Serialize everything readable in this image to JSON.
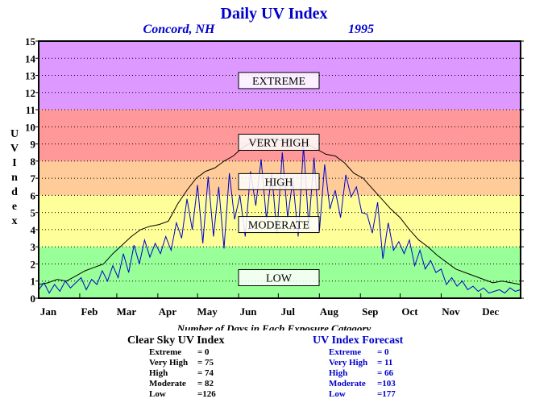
{
  "chart_data": {
    "type": "line",
    "title": "Daily UV Index",
    "subtitle_location": "Concord, NH",
    "subtitle_year": "1995",
    "ylabel": "UV Index",
    "xlabel": "",
    "ylim": [
      0,
      15
    ],
    "yticks": [
      "0",
      "1",
      "2",
      "3",
      "4",
      "5",
      "6",
      "7",
      "8",
      "9",
      "10",
      "11",
      "12",
      "13",
      "14",
      "15"
    ],
    "categories": [
      "Jan",
      "Feb",
      "Mar",
      "Apr",
      "May",
      "Jun",
      "Jul",
      "Aug",
      "Sep",
      "Oct",
      "Nov",
      "Dec"
    ],
    "bands": [
      {
        "label": "LOW",
        "from": 0,
        "to": 3,
        "color": "#99ff99",
        "label_y": 1.2
      },
      {
        "label": "MODERATE",
        "from": 3,
        "to": 6,
        "color": "#ffff99",
        "label_y": 4.3
      },
      {
        "label": "HIGH",
        "from": 6,
        "to": 8,
        "color": "#ffcc99",
        "label_y": 6.8
      },
      {
        "label": "VERY HIGH",
        "from": 8,
        "to": 11,
        "color": "#ff9999",
        "label_y": 9.1
      },
      {
        "label": "EXTREME",
        "from": 11,
        "to": 15,
        "color": "#dd99ff",
        "label_y": 12.7
      }
    ],
    "series": [
      {
        "role": "clear-sky",
        "color": "#000000",
        "x": [
          1,
          8,
          15,
          22,
          29,
          36,
          43,
          50,
          57,
          64,
          71,
          78,
          85,
          92,
          99,
          106,
          113,
          120,
          127,
          134,
          141,
          148,
          155,
          162,
          169,
          176,
          183,
          190,
          197,
          204,
          211,
          218,
          225,
          232,
          239,
          246,
          253,
          260,
          267,
          274,
          281,
          288,
          295,
          302,
          309,
          316,
          323,
          330,
          337,
          344,
          351,
          358,
          365
        ],
        "values": [
          0.8,
          0.9,
          1.1,
          1.0,
          1.3,
          1.6,
          1.8,
          2.0,
          2.6,
          3.1,
          3.6,
          4.0,
          4.2,
          4.3,
          4.5,
          5.5,
          6.3,
          7.0,
          7.4,
          7.6,
          8.0,
          8.3,
          8.8,
          9.1,
          9.2,
          9.3,
          9.2,
          9.2,
          9.1,
          9.0,
          8.7,
          8.4,
          8.3,
          7.9,
          7.3,
          7.0,
          6.4,
          5.8,
          5.2,
          4.7,
          4.0,
          3.4,
          3.0,
          2.5,
          2.1,
          1.7,
          1.5,
          1.3,
          1.1,
          0.9,
          1.0,
          0.9,
          0.8
        ]
      },
      {
        "role": "forecast",
        "color": "#0000cc",
        "x": [
          1,
          5,
          9,
          13,
          17,
          21,
          25,
          29,
          33,
          37,
          41,
          45,
          49,
          53,
          57,
          61,
          65,
          69,
          73,
          77,
          81,
          85,
          89,
          93,
          97,
          101,
          105,
          109,
          113,
          117,
          121,
          125,
          129,
          133,
          137,
          141,
          145,
          149,
          153,
          157,
          161,
          165,
          169,
          173,
          177,
          181,
          185,
          189,
          193,
          197,
          201,
          205,
          209,
          213,
          217,
          221,
          225,
          229,
          233,
          237,
          241,
          245,
          249,
          253,
          257,
          261,
          265,
          269,
          273,
          277,
          281,
          285,
          289,
          293,
          297,
          301,
          305,
          309,
          313,
          317,
          321,
          325,
          329,
          333,
          337,
          341,
          345,
          349,
          353,
          357,
          361,
          365
        ],
        "values": [
          0.5,
          0.9,
          0.3,
          0.8,
          0.4,
          1.0,
          0.6,
          0.9,
          1.2,
          0.5,
          1.1,
          0.8,
          1.6,
          1.0,
          1.9,
          1.2,
          2.6,
          1.5,
          3.1,
          2.0,
          3.4,
          2.4,
          3.2,
          2.6,
          3.6,
          2.8,
          4.4,
          3.5,
          5.8,
          4.0,
          6.6,
          3.2,
          7.1,
          3.6,
          6.5,
          2.9,
          7.3,
          4.6,
          6.0,
          3.6,
          7.4,
          5.4,
          8.1,
          4.6,
          7.3,
          3.8,
          8.5,
          4.7,
          6.9,
          3.6,
          8.9,
          4.2,
          8.2,
          3.9,
          7.8,
          5.2,
          6.3,
          4.7,
          7.2,
          5.9,
          6.5,
          5.0,
          4.9,
          3.8,
          5.6,
          2.3,
          4.4,
          2.8,
          3.3,
          2.6,
          3.4,
          1.9,
          2.8,
          1.7,
          2.2,
          1.5,
          1.7,
          0.8,
          1.2,
          0.7,
          1.0,
          0.5,
          0.7,
          0.4,
          0.6,
          0.3,
          0.4,
          0.5,
          0.3,
          0.6,
          0.4,
          0.5
        ]
      }
    ]
  },
  "caption": "Number of Days in Each Exposure Catagory",
  "clear_sky": {
    "title": "Clear Sky UV Index",
    "rows": [
      {
        "label": "Extreme",
        "value": "=    0"
      },
      {
        "label": "Very High",
        "value": "= 75"
      },
      {
        "label": "High",
        "value": "= 74"
      },
      {
        "label": "Moderate",
        "value": "= 82"
      },
      {
        "label": "Low",
        "value": "=126"
      }
    ]
  },
  "forecast": {
    "title": "UV Index Forecast",
    "rows": [
      {
        "label": "Extreme",
        "value": "=    0"
      },
      {
        "label": "Very High",
        "value": "= 11"
      },
      {
        "label": "High",
        "value": "= 66"
      },
      {
        "label": "Moderate",
        "value": "=103"
      },
      {
        "label": "Low",
        "value": "=177"
      }
    ]
  }
}
